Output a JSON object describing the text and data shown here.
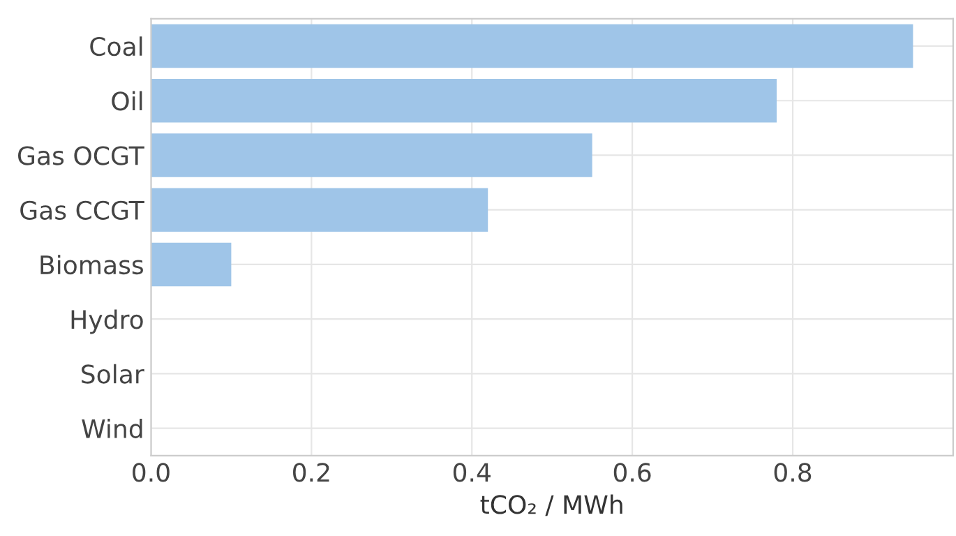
{
  "chart_data": {
    "type": "bar",
    "orientation": "horizontal",
    "xlabel": "tCO₂ / MWh",
    "categories": [
      "Coal",
      "Oil",
      "Gas OCGT",
      "Gas CCGT",
      "Biomass",
      "Hydro",
      "Solar",
      "Wind"
    ],
    "values": [
      0.95,
      0.78,
      0.55,
      0.42,
      0.1,
      0,
      0,
      0
    ],
    "color": "#9fc5e8",
    "xlim": [
      0,
      1.0
    ],
    "xticks": [
      {
        "value": 0,
        "label": "0.0"
      },
      {
        "value": 0.2,
        "label": "0.2"
      },
      {
        "value": 0.4,
        "label": "0.4"
      },
      {
        "value": 0.6,
        "label": "0.6"
      },
      {
        "value": 0.8,
        "label": "0.8"
      }
    ],
    "grid": true
  }
}
